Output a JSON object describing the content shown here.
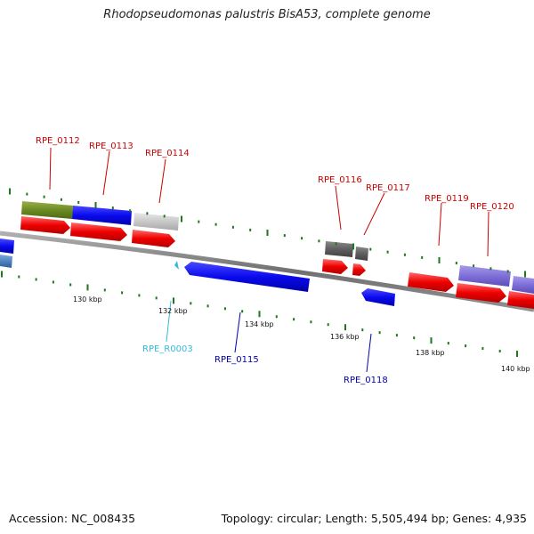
{
  "title": "Rhodopseudomonas palustris BisA53, complete genome",
  "footer": {
    "accession": "Accession: NC_008435",
    "topology": "Topology: circular; Length: 5,505,494 bp; Genes: 4,935"
  },
  "colors": {
    "backbone": "#808080",
    "forward_gene_label": "#cc0000",
    "reverse_gene_label": "#0000aa",
    "rna_label": "#33bbdd",
    "cds": "#ff0000",
    "tick": "#1a7a1a"
  },
  "scale_labels": [
    "130 kbp",
    "132 kbp",
    "134 kbp",
    "136 kbp",
    "138 kbp",
    "140 kbp"
  ],
  "gene_labels": [
    {
      "name": "RPE_0112",
      "strand": "forward"
    },
    {
      "name": "RPE_0113",
      "strand": "forward"
    },
    {
      "name": "RPE_0114",
      "strand": "forward"
    },
    {
      "name": "RPE_0116",
      "strand": "forward"
    },
    {
      "name": "RPE_0117",
      "strand": "forward"
    },
    {
      "name": "RPE_0119",
      "strand": "forward"
    },
    {
      "name": "RPE_0120",
      "strand": "forward"
    },
    {
      "name": "RPE_R0003",
      "strand": "rna"
    },
    {
      "name": "RPE_0115",
      "strand": "reverse"
    },
    {
      "name": "RPE_0118",
      "strand": "reverse"
    }
  ]
}
